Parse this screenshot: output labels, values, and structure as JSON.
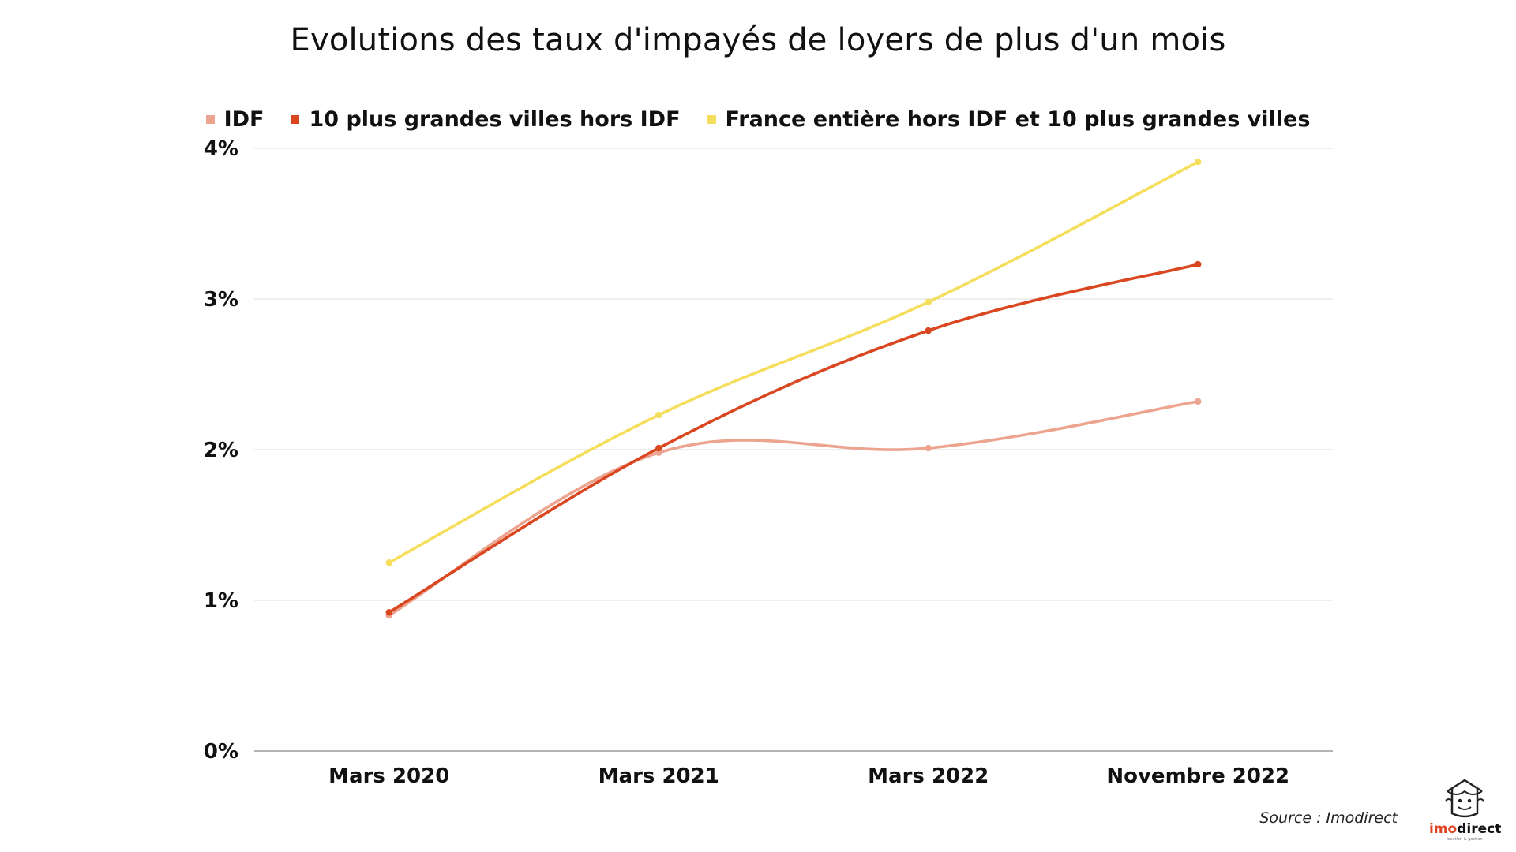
{
  "chart_data": {
    "type": "line",
    "title": "Evolutions des taux d'impayés de loyers de plus d'un mois",
    "categories": [
      "Mars 2020",
      "Mars 2021",
      "Mars 2022",
      "Novembre 2022"
    ],
    "series": [
      {
        "name": "IDF",
        "values": [
          0.9,
          1.98,
          2.01,
          2.32
        ],
        "color": "#eca48f"
      },
      {
        "name": "10 plus grandes villes hors IDF",
        "values": [
          0.92,
          2.01,
          2.79,
          3.23
        ],
        "color": "#d9461f"
      },
      {
        "name": "France entière hors IDF et 10 plus grandes villes",
        "values": [
          1.25,
          2.23,
          2.98,
          3.91
        ],
        "color": "#f5de5b"
      }
    ],
    "y_ticks": [
      "0%",
      "1%",
      "2%",
      "3%",
      "4%"
    ],
    "ylim": [
      0,
      4
    ],
    "grid": true,
    "legend_position": "top"
  },
  "source": "Source : Imodirect",
  "logo": {
    "text_accent": "imo",
    "text_rest": "direct",
    "tagline": "location & gestion",
    "icon": "house-face-icon"
  }
}
